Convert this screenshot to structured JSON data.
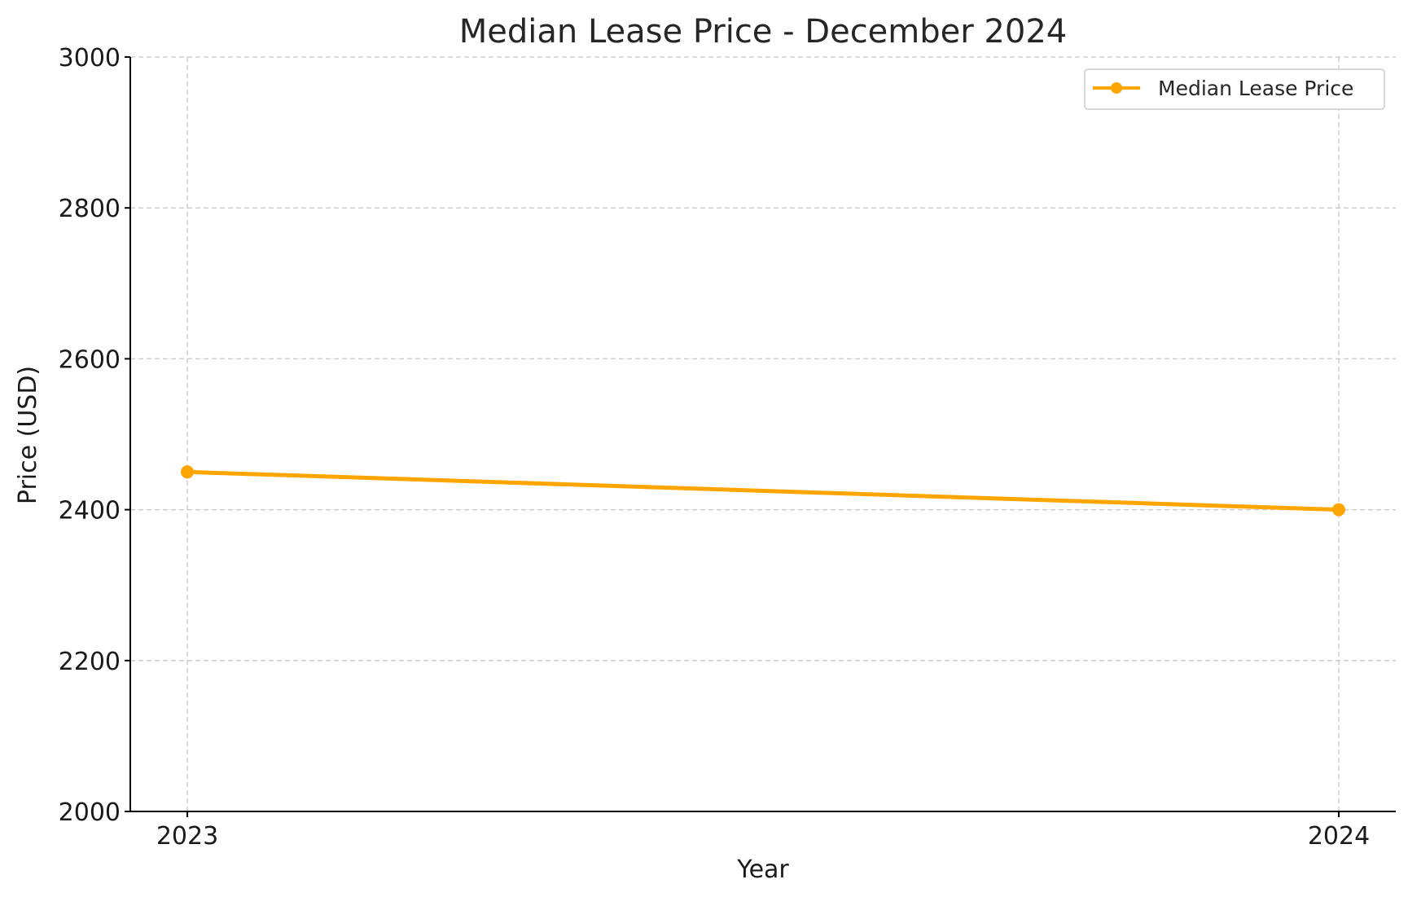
{
  "chart_data": {
    "type": "line",
    "title": "Median Lease Price - December 2024",
    "xlabel": "Year",
    "ylabel": "Price (USD)",
    "categories": [
      "2023",
      "2024"
    ],
    "series": [
      {
        "name": "Median Lease Price",
        "values": [
          2450,
          2400
        ],
        "color": "#FFA500",
        "marker": "circle"
      }
    ],
    "ylim": [
      2000,
      3000
    ],
    "yticks": [
      2000,
      2200,
      2400,
      2600,
      2800,
      3000
    ],
    "grid": true,
    "grid_style": "dashed",
    "legend_position": "top-right"
  }
}
